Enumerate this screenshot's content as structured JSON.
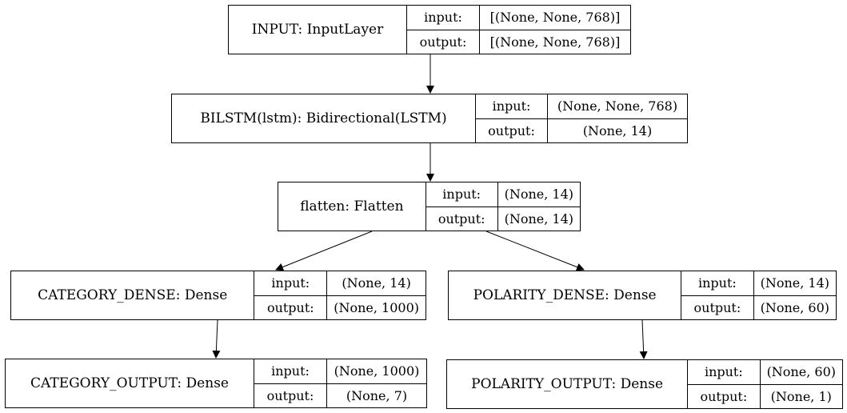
{
  "nodes": [
    {
      "id": "input",
      "name": "INPUT: InputLayer",
      "input_label": "input:",
      "output_label": "output:",
      "input_shape": "[(None, None, 768)]",
      "output_shape": "[(None, None, 768)]"
    },
    {
      "id": "bilstm",
      "name": "BILSTM(lstm): Bidirectional(LSTM)",
      "input_label": "input:",
      "output_label": "output:",
      "input_shape": "(None, None, 768)",
      "output_shape": "(None, 14)"
    },
    {
      "id": "flatten",
      "name": "flatten: Flatten",
      "input_label": "input:",
      "output_label": "output:",
      "input_shape": "(None, 14)",
      "output_shape": "(None, 14)"
    },
    {
      "id": "category_dense",
      "name": "CATEGORY_DENSE: Dense",
      "input_label": "input:",
      "output_label": "output:",
      "input_shape": "(None, 14)",
      "output_shape": "(None, 1000)"
    },
    {
      "id": "polarity_dense",
      "name": "POLARITY_DENSE: Dense",
      "input_label": "input:",
      "output_label": "output:",
      "input_shape": "(None, 14)",
      "output_shape": "(None, 60)"
    },
    {
      "id": "category_output",
      "name": "CATEGORY_OUTPUT: Dense",
      "input_label": "input:",
      "output_label": "output:",
      "input_shape": "(None, 1000)",
      "output_shape": "(None, 7)"
    },
    {
      "id": "polarity_output",
      "name": "POLARITY_OUTPUT: Dense",
      "input_label": "input:",
      "output_label": "output:",
      "input_shape": "(None, 60)",
      "output_shape": "(None, 1)"
    }
  ],
  "edges": [
    {
      "from": "input",
      "to": "bilstm"
    },
    {
      "from": "bilstm",
      "to": "flatten"
    },
    {
      "from": "flatten",
      "to": "category_dense"
    },
    {
      "from": "flatten",
      "to": "polarity_dense"
    },
    {
      "from": "category_dense",
      "to": "category_output"
    },
    {
      "from": "polarity_dense",
      "to": "polarity_output"
    }
  ]
}
